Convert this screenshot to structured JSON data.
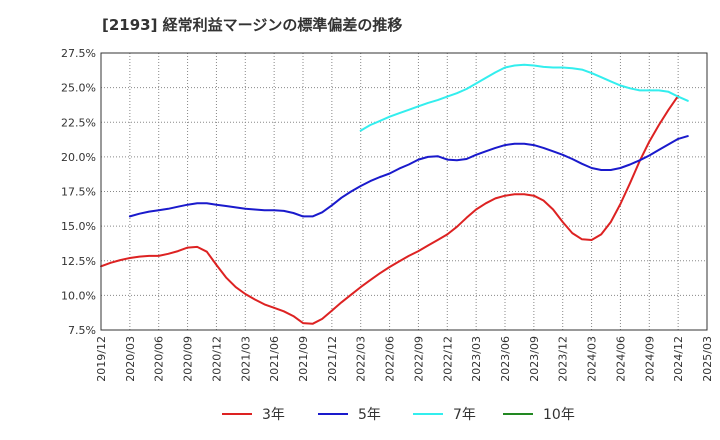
{
  "chart_data": {
    "type": "line",
    "title": "[2193]  経常利益マージンの標準偏差の推移",
    "ylim": [
      7.5,
      27.5
    ],
    "y_ticks": [
      7.5,
      10.0,
      12.5,
      15.0,
      17.5,
      20.0,
      22.5,
      25.0,
      27.5
    ],
    "y_tick_labels": [
      "7.5%",
      "10.0%",
      "12.5%",
      "15.0%",
      "17.5%",
      "20.0%",
      "22.5%",
      "25.0%",
      "27.5%"
    ],
    "x_tick_labels": [
      "2019/12",
      "2020/03",
      "2020/06",
      "2020/09",
      "2020/12",
      "2021/03",
      "2021/06",
      "2021/09",
      "2021/12",
      "2022/03",
      "2022/06",
      "2022/09",
      "2022/12",
      "2023/03",
      "2023/06",
      "2023/09",
      "2023/12",
      "2024/03",
      "2024/06",
      "2024/09",
      "2024/12",
      "2025/03"
    ],
    "grid": true,
    "legend_position": "bottom",
    "series": [
      {
        "name": "3年",
        "color": "#dd2222",
        "points": [
          [
            "2019/12",
            12.1
          ],
          [
            "2020/01",
            12.35
          ],
          [
            "2020/02",
            12.55
          ],
          [
            "2020/03",
            12.7
          ],
          [
            "2020/04",
            12.8
          ],
          [
            "2020/05",
            12.85
          ],
          [
            "2020/06",
            12.85
          ],
          [
            "2020/07",
            13.0
          ],
          [
            "2020/08",
            13.2
          ],
          [
            "2020/09",
            13.45
          ],
          [
            "2020/10",
            13.5
          ],
          [
            "2020/11",
            13.15
          ],
          [
            "2020/12",
            12.2
          ],
          [
            "2021/01",
            11.3
          ],
          [
            "2021/02",
            10.6
          ],
          [
            "2021/03",
            10.1
          ],
          [
            "2021/04",
            9.7
          ],
          [
            "2021/05",
            9.35
          ],
          [
            "2021/06",
            9.1
          ],
          [
            "2021/07",
            8.85
          ],
          [
            "2021/08",
            8.5
          ],
          [
            "2021/09",
            8.0
          ],
          [
            "2021/10",
            7.95
          ],
          [
            "2021/11",
            8.3
          ],
          [
            "2021/12",
            8.9
          ],
          [
            "2022/01",
            9.5
          ],
          [
            "2022/02",
            10.05
          ],
          [
            "2022/03",
            10.6
          ],
          [
            "2022/04",
            11.1
          ],
          [
            "2022/05",
            11.6
          ],
          [
            "2022/06",
            12.05
          ],
          [
            "2022/07",
            12.45
          ],
          [
            "2022/08",
            12.85
          ],
          [
            "2022/09",
            13.2
          ],
          [
            "2022/10",
            13.6
          ],
          [
            "2022/11",
            14.0
          ],
          [
            "2022/12",
            14.4
          ],
          [
            "2023/01",
            14.95
          ],
          [
            "2023/02",
            15.6
          ],
          [
            "2023/03",
            16.2
          ],
          [
            "2023/04",
            16.65
          ],
          [
            "2023/05",
            17.0
          ],
          [
            "2023/06",
            17.2
          ],
          [
            "2023/07",
            17.3
          ],
          [
            "2023/08",
            17.3
          ],
          [
            "2023/09",
            17.2
          ],
          [
            "2023/10",
            16.85
          ],
          [
            "2023/11",
            16.2
          ],
          [
            "2023/12",
            15.3
          ],
          [
            "2024/01",
            14.5
          ],
          [
            "2024/02",
            14.05
          ],
          [
            "2024/03",
            14.0
          ],
          [
            "2024/04",
            14.4
          ],
          [
            "2024/05",
            15.3
          ],
          [
            "2024/06",
            16.6
          ],
          [
            "2024/07",
            18.1
          ],
          [
            "2024/08",
            19.7
          ],
          [
            "2024/09",
            21.1
          ],
          [
            "2024/10",
            22.3
          ],
          [
            "2024/11",
            23.4
          ],
          [
            "2024/12",
            24.4
          ]
        ]
      },
      {
        "name": "5年",
        "color": "#1a1acc",
        "points": [
          [
            "2020/03",
            15.7
          ],
          [
            "2020/04",
            15.9
          ],
          [
            "2020/05",
            16.05
          ],
          [
            "2020/06",
            16.15
          ],
          [
            "2020/07",
            16.25
          ],
          [
            "2020/08",
            16.4
          ],
          [
            "2020/09",
            16.55
          ],
          [
            "2020/10",
            16.65
          ],
          [
            "2020/11",
            16.65
          ],
          [
            "2020/12",
            16.55
          ],
          [
            "2021/01",
            16.45
          ],
          [
            "2021/02",
            16.35
          ],
          [
            "2021/03",
            16.25
          ],
          [
            "2021/04",
            16.2
          ],
          [
            "2021/05",
            16.15
          ],
          [
            "2021/06",
            16.15
          ],
          [
            "2021/07",
            16.1
          ],
          [
            "2021/08",
            15.95
          ],
          [
            "2021/09",
            15.7
          ],
          [
            "2021/10",
            15.7
          ],
          [
            "2021/11",
            16.0
          ],
          [
            "2021/12",
            16.5
          ],
          [
            "2022/01",
            17.05
          ],
          [
            "2022/02",
            17.5
          ],
          [
            "2022/03",
            17.9
          ],
          [
            "2022/04",
            18.25
          ],
          [
            "2022/05",
            18.55
          ],
          [
            "2022/06",
            18.8
          ],
          [
            "2022/07",
            19.15
          ],
          [
            "2022/08",
            19.45
          ],
          [
            "2022/09",
            19.8
          ],
          [
            "2022/10",
            20.0
          ],
          [
            "2022/11",
            20.05
          ],
          [
            "2022/12",
            19.8
          ],
          [
            "2023/01",
            19.75
          ],
          [
            "2023/02",
            19.85
          ],
          [
            "2023/03",
            20.15
          ],
          [
            "2023/04",
            20.4
          ],
          [
            "2023/05",
            20.65
          ],
          [
            "2023/06",
            20.85
          ],
          [
            "2023/07",
            20.95
          ],
          [
            "2023/08",
            20.95
          ],
          [
            "2023/09",
            20.85
          ],
          [
            "2023/10",
            20.65
          ],
          [
            "2023/11",
            20.4
          ],
          [
            "2023/12",
            20.15
          ],
          [
            "2024/01",
            19.85
          ],
          [
            "2024/02",
            19.5
          ],
          [
            "2024/03",
            19.2
          ],
          [
            "2024/04",
            19.05
          ],
          [
            "2024/05",
            19.05
          ],
          [
            "2024/06",
            19.2
          ],
          [
            "2024/07",
            19.45
          ],
          [
            "2024/08",
            19.75
          ],
          [
            "2024/09",
            20.1
          ],
          [
            "2024/10",
            20.5
          ],
          [
            "2024/11",
            20.9
          ],
          [
            "2024/12",
            21.3
          ],
          [
            "2025/01",
            21.5
          ]
        ]
      },
      {
        "name": "7年",
        "color": "#33eeee",
        "points": [
          [
            "2022/03",
            21.9
          ],
          [
            "2022/04",
            22.3
          ],
          [
            "2022/05",
            22.6
          ],
          [
            "2022/06",
            22.9
          ],
          [
            "2022/07",
            23.15
          ],
          [
            "2022/08",
            23.4
          ],
          [
            "2022/09",
            23.65
          ],
          [
            "2022/10",
            23.9
          ],
          [
            "2022/11",
            24.1
          ],
          [
            "2022/12",
            24.35
          ],
          [
            "2023/01",
            24.6
          ],
          [
            "2023/02",
            24.9
          ],
          [
            "2023/03",
            25.3
          ],
          [
            "2023/04",
            25.7
          ],
          [
            "2023/05",
            26.1
          ],
          [
            "2023/06",
            26.45
          ],
          [
            "2023/07",
            26.6
          ],
          [
            "2023/08",
            26.65
          ],
          [
            "2023/09",
            26.6
          ],
          [
            "2023/10",
            26.5
          ],
          [
            "2023/11",
            26.45
          ],
          [
            "2023/12",
            26.45
          ],
          [
            "2024/01",
            26.4
          ],
          [
            "2024/02",
            26.3
          ],
          [
            "2024/03",
            26.05
          ],
          [
            "2024/04",
            25.75
          ],
          [
            "2024/05",
            25.45
          ],
          [
            "2024/06",
            25.15
          ],
          [
            "2024/07",
            24.95
          ],
          [
            "2024/08",
            24.8
          ],
          [
            "2024/09",
            24.8
          ],
          [
            "2024/10",
            24.8
          ],
          [
            "2024/11",
            24.7
          ],
          [
            "2024/12",
            24.35
          ],
          [
            "2025/01",
            24.05
          ]
        ]
      },
      {
        "name": "10年",
        "color": "#228822",
        "points": []
      }
    ]
  }
}
